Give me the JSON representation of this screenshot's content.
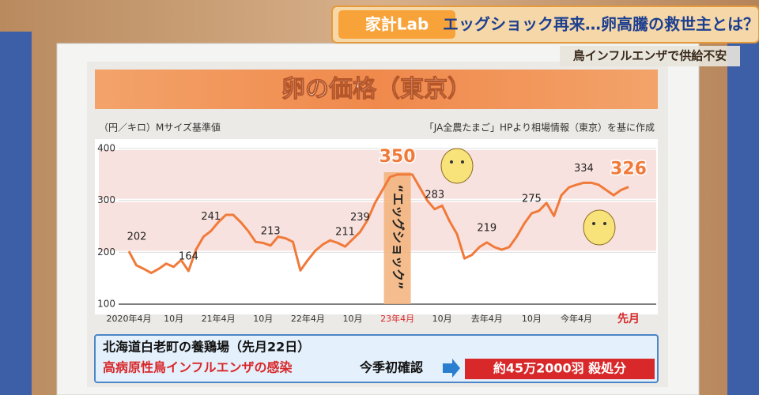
{
  "banner": {
    "brand": "家計Lab",
    "headline": "エッグショック再来…卵高騰の救世主とは？",
    "subline": "鳥インフルエンザで供給不安"
  },
  "chart_data": {
    "type": "line",
    "title": "卵の価格（東京）",
    "y_axis_label": "（円／キロ）Mサイズ基準値",
    "source": "「JA全農たまご」HPより相場情報（東京）を基に作成",
    "annotation": {
      "label": "“エッグショック”",
      "category": "23年4月"
    },
    "categories": [
      "2020年4月",
      null,
      null,
      null,
      null,
      null,
      "10月",
      null,
      null,
      null,
      null,
      null,
      "21年4月",
      null,
      null,
      null,
      null,
      null,
      "10月",
      null,
      null,
      null,
      null,
      null,
      "22年4月",
      null,
      null,
      null,
      null,
      null,
      "10月",
      null,
      null,
      null,
      null,
      null,
      "23年4月",
      null,
      null,
      null,
      null,
      null,
      "10月",
      null,
      null,
      null,
      null,
      null,
      "去年4月",
      null,
      null,
      null,
      null,
      null,
      "10月",
      null,
      null,
      null,
      null,
      null,
      "今年4月",
      null,
      null,
      null,
      null,
      null,
      null,
      "先月"
    ],
    "series": [
      {
        "name": "卵の価格",
        "color": "#f07a3a",
        "values": [
          202,
          175,
          168,
          160,
          168,
          178,
          172,
          185,
          164,
          205,
          230,
          241,
          258,
          272,
          272,
          258,
          241,
          220,
          218,
          213,
          230,
          227,
          220,
          165,
          185,
          203,
          215,
          223,
          218,
          211,
          225,
          239,
          262,
          295,
          320,
          345,
          350,
          350,
          350,
          325,
          300,
          283,
          290,
          260,
          235,
          188,
          195,
          210,
          219,
          210,
          205,
          210,
          230,
          255,
          275,
          280,
          295,
          270,
          310,
          325,
          330,
          334,
          334,
          330,
          320,
          310,
          320,
          326
        ],
        "value_labels": [
          "202",
          null,
          null,
          null,
          null,
          null,
          null,
          null,
          "164",
          null,
          null,
          "241",
          null,
          null,
          null,
          null,
          null,
          null,
          null,
          "213",
          null,
          null,
          null,
          null,
          null,
          null,
          null,
          null,
          null,
          "211",
          null,
          "239",
          null,
          null,
          null,
          null,
          "350",
          null,
          null,
          null,
          null,
          "283",
          null,
          null,
          null,
          null,
          null,
          null,
          "219",
          null,
          null,
          null,
          null,
          null,
          "275",
          null,
          null,
          null,
          null,
          null,
          null,
          "334",
          null,
          null,
          null,
          null,
          null,
          "326"
        ]
      }
    ],
    "ylim": [
      100,
      400
    ],
    "yticks": [
      100,
      200,
      300,
      400
    ]
  },
  "footer": {
    "place": "北海道白老町の養鶏場（先月22日）",
    "event": "高病原性鳥インフルエンザの感染",
    "note": "今季初確認",
    "result": "約45万2000羽 殺処分"
  }
}
